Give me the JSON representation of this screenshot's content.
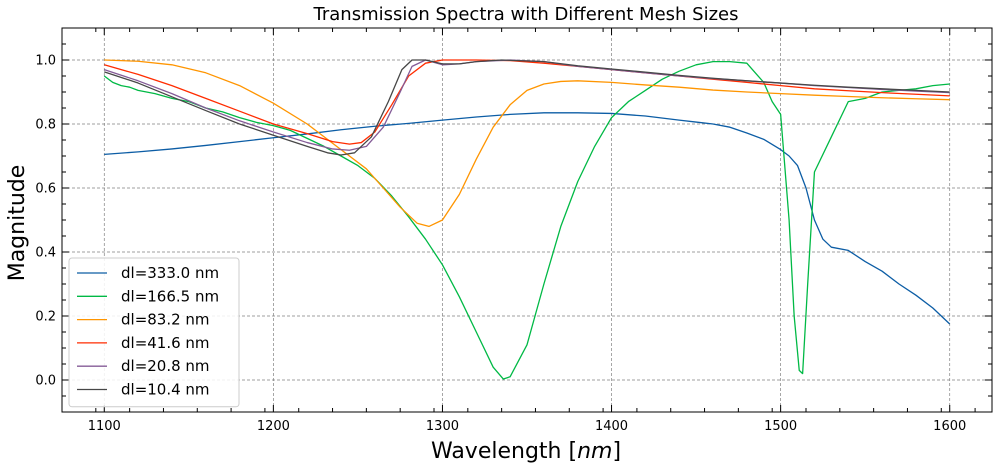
{
  "chart_data": {
    "type": "line",
    "title": "Transmission Spectra with Different Mesh Sizes",
    "xlabel": "Wavelength",
    "xlabel_unit": "nm",
    "ylabel": "Magnitude",
    "xlim": [
      1075,
      1625
    ],
    "ylim": [
      -0.1,
      1.1
    ],
    "xticks": [
      1100,
      1200,
      1300,
      1400,
      1500,
      1600
    ],
    "yticks": [
      0.0,
      0.2,
      0.4,
      0.6,
      0.8,
      1.0
    ],
    "xtick_labels": [
      "1100",
      "1200",
      "1300",
      "1400",
      "1500",
      "1600"
    ],
    "ytick_labels": [
      "0.0",
      "0.2",
      "0.4",
      "0.6",
      "0.8",
      "1.0"
    ],
    "grid": true,
    "legend_position": "lower-left",
    "series": [
      {
        "name": "dl=333.0 nm",
        "color": "#0C5DA5",
        "points": [
          [
            1100,
            0.705
          ],
          [
            1120,
            0.713
          ],
          [
            1140,
            0.722
          ],
          [
            1160,
            0.733
          ],
          [
            1180,
            0.745
          ],
          [
            1200,
            0.757
          ],
          [
            1220,
            0.769
          ],
          [
            1240,
            0.782
          ],
          [
            1260,
            0.793
          ],
          [
            1280,
            0.802
          ],
          [
            1300,
            0.812
          ],
          [
            1320,
            0.822
          ],
          [
            1340,
            0.83
          ],
          [
            1360,
            0.835
          ],
          [
            1380,
            0.835
          ],
          [
            1400,
            0.833
          ],
          [
            1420,
            0.825
          ],
          [
            1440,
            0.812
          ],
          [
            1450,
            0.806
          ],
          [
            1460,
            0.8
          ],
          [
            1470,
            0.79
          ],
          [
            1480,
            0.772
          ],
          [
            1490,
            0.752
          ],
          [
            1500,
            0.72
          ],
          [
            1505,
            0.7
          ],
          [
            1510,
            0.67
          ],
          [
            1515,
            0.6
          ],
          [
            1520,
            0.5
          ],
          [
            1525,
            0.44
          ],
          [
            1530,
            0.415
          ],
          [
            1540,
            0.405
          ],
          [
            1550,
            0.37
          ],
          [
            1560,
            0.34
          ],
          [
            1570,
            0.3
          ],
          [
            1580,
            0.265
          ],
          [
            1590,
            0.225
          ],
          [
            1600,
            0.175
          ]
        ]
      },
      {
        "name": "dl=166.5 nm",
        "color": "#00B945",
        "points": [
          [
            1100,
            0.95
          ],
          [
            1105,
            0.93
          ],
          [
            1110,
            0.92
          ],
          [
            1115,
            0.915
          ],
          [
            1120,
            0.905
          ],
          [
            1130,
            0.895
          ],
          [
            1140,
            0.88
          ],
          [
            1150,
            0.87
          ],
          [
            1160,
            0.85
          ],
          [
            1170,
            0.838
          ],
          [
            1180,
            0.82
          ],
          [
            1190,
            0.805
          ],
          [
            1200,
            0.795
          ],
          [
            1210,
            0.78
          ],
          [
            1220,
            0.755
          ],
          [
            1230,
            0.73
          ],
          [
            1240,
            0.7
          ],
          [
            1250,
            0.67
          ],
          [
            1260,
            0.63
          ],
          [
            1270,
            0.575
          ],
          [
            1280,
            0.51
          ],
          [
            1290,
            0.44
          ],
          [
            1300,
            0.36
          ],
          [
            1310,
            0.26
          ],
          [
            1320,
            0.15
          ],
          [
            1330,
            0.04
          ],
          [
            1336,
            0.003
          ],
          [
            1340,
            0.01
          ],
          [
            1350,
            0.11
          ],
          [
            1360,
            0.3
          ],
          [
            1370,
            0.48
          ],
          [
            1380,
            0.62
          ],
          [
            1390,
            0.73
          ],
          [
            1400,
            0.82
          ],
          [
            1410,
            0.87
          ],
          [
            1420,
            0.905
          ],
          [
            1430,
            0.94
          ],
          [
            1440,
            0.965
          ],
          [
            1450,
            0.985
          ],
          [
            1460,
            0.995
          ],
          [
            1470,
            0.995
          ],
          [
            1480,
            0.99
          ],
          [
            1485,
            0.96
          ],
          [
            1490,
            0.93
          ],
          [
            1495,
            0.87
          ],
          [
            1500,
            0.83
          ],
          [
            1505,
            0.5
          ],
          [
            1508,
            0.2
          ],
          [
            1511,
            0.03
          ],
          [
            1513,
            0.02
          ],
          [
            1516,
            0.3
          ],
          [
            1520,
            0.65
          ],
          [
            1530,
            0.76
          ],
          [
            1540,
            0.87
          ],
          [
            1550,
            0.88
          ],
          [
            1560,
            0.9
          ],
          [
            1570,
            0.905
          ],
          [
            1580,
            0.91
          ],
          [
            1590,
            0.92
          ],
          [
            1600,
            0.925
          ]
        ]
      },
      {
        "name": "dl=83.2 nm",
        "color": "#FF9500",
        "points": [
          [
            1100,
            1.0
          ],
          [
            1120,
            0.996
          ],
          [
            1140,
            0.985
          ],
          [
            1160,
            0.96
          ],
          [
            1180,
            0.92
          ],
          [
            1200,
            0.865
          ],
          [
            1220,
            0.8
          ],
          [
            1240,
            0.72
          ],
          [
            1255,
            0.66
          ],
          [
            1265,
            0.6
          ],
          [
            1275,
            0.54
          ],
          [
            1285,
            0.49
          ],
          [
            1292,
            0.48
          ],
          [
            1300,
            0.5
          ],
          [
            1310,
            0.58
          ],
          [
            1320,
            0.69
          ],
          [
            1330,
            0.79
          ],
          [
            1340,
            0.86
          ],
          [
            1350,
            0.905
          ],
          [
            1360,
            0.925
          ],
          [
            1370,
            0.933
          ],
          [
            1380,
            0.935
          ],
          [
            1400,
            0.93
          ],
          [
            1420,
            0.922
          ],
          [
            1440,
            0.915
          ],
          [
            1460,
            0.906
          ],
          [
            1480,
            0.9
          ],
          [
            1500,
            0.895
          ],
          [
            1520,
            0.89
          ],
          [
            1540,
            0.886
          ],
          [
            1560,
            0.882
          ],
          [
            1580,
            0.879
          ],
          [
            1600,
            0.876
          ]
        ]
      },
      {
        "name": "dl=41.6 nm",
        "color": "#FF2C00",
        "points": [
          [
            1100,
            0.985
          ],
          [
            1120,
            0.955
          ],
          [
            1140,
            0.92
          ],
          [
            1160,
            0.88
          ],
          [
            1180,
            0.84
          ],
          [
            1200,
            0.8
          ],
          [
            1220,
            0.77
          ],
          [
            1235,
            0.745
          ],
          [
            1245,
            0.737
          ],
          [
            1252,
            0.742
          ],
          [
            1260,
            0.775
          ],
          [
            1270,
            0.86
          ],
          [
            1280,
            0.95
          ],
          [
            1290,
            0.99
          ],
          [
            1300,
            1.0
          ],
          [
            1320,
            1.0
          ],
          [
            1340,
            0.998
          ],
          [
            1360,
            0.99
          ],
          [
            1380,
            0.98
          ],
          [
            1400,
            0.97
          ],
          [
            1420,
            0.96
          ],
          [
            1440,
            0.95
          ],
          [
            1460,
            0.94
          ],
          [
            1480,
            0.93
          ],
          [
            1500,
            0.92
          ],
          [
            1520,
            0.91
          ],
          [
            1540,
            0.904
          ],
          [
            1560,
            0.898
          ],
          [
            1580,
            0.893
          ],
          [
            1600,
            0.888
          ]
        ]
      },
      {
        "name": "dl=20.8 nm",
        "color": "#845B97",
        "points": [
          [
            1100,
            0.97
          ],
          [
            1120,
            0.935
          ],
          [
            1140,
            0.895
          ],
          [
            1160,
            0.85
          ],
          [
            1180,
            0.81
          ],
          [
            1200,
            0.775
          ],
          [
            1220,
            0.742
          ],
          [
            1235,
            0.722
          ],
          [
            1245,
            0.718
          ],
          [
            1255,
            0.73
          ],
          [
            1265,
            0.79
          ],
          [
            1275,
            0.9
          ],
          [
            1282,
            0.98
          ],
          [
            1290,
            1.0
          ],
          [
            1300,
            0.985
          ],
          [
            1310,
            0.988
          ],
          [
            1320,
            0.995
          ],
          [
            1340,
            1.0
          ],
          [
            1360,
            0.995
          ],
          [
            1380,
            0.98
          ],
          [
            1400,
            0.97
          ],
          [
            1420,
            0.96
          ],
          [
            1440,
            0.95
          ],
          [
            1460,
            0.942
          ],
          [
            1480,
            0.935
          ],
          [
            1500,
            0.928
          ],
          [
            1520,
            0.92
          ],
          [
            1540,
            0.914
          ],
          [
            1560,
            0.908
          ],
          [
            1580,
            0.903
          ],
          [
            1600,
            0.898
          ]
        ]
      },
      {
        "name": "dl=10.4 nm",
        "color": "#474747",
        "points": [
          [
            1100,
            0.963
          ],
          [
            1120,
            0.928
          ],
          [
            1140,
            0.885
          ],
          [
            1160,
            0.842
          ],
          [
            1180,
            0.8
          ],
          [
            1200,
            0.765
          ],
          [
            1220,
            0.73
          ],
          [
            1232,
            0.71
          ],
          [
            1240,
            0.703
          ],
          [
            1248,
            0.71
          ],
          [
            1258,
            0.76
          ],
          [
            1268,
            0.87
          ],
          [
            1276,
            0.97
          ],
          [
            1282,
            1.0
          ],
          [
            1290,
            1.0
          ],
          [
            1300,
            0.988
          ],
          [
            1310,
            0.988
          ],
          [
            1320,
            0.995
          ],
          [
            1335,
            1.0
          ],
          [
            1360,
            0.995
          ],
          [
            1380,
            0.982
          ],
          [
            1400,
            0.972
          ],
          [
            1420,
            0.962
          ],
          [
            1440,
            0.952
          ],
          [
            1460,
            0.943
          ],
          [
            1480,
            0.935
          ],
          [
            1500,
            0.928
          ],
          [
            1520,
            0.921
          ],
          [
            1540,
            0.915
          ],
          [
            1560,
            0.91
          ],
          [
            1580,
            0.905
          ],
          [
            1600,
            0.9
          ]
        ]
      }
    ]
  }
}
